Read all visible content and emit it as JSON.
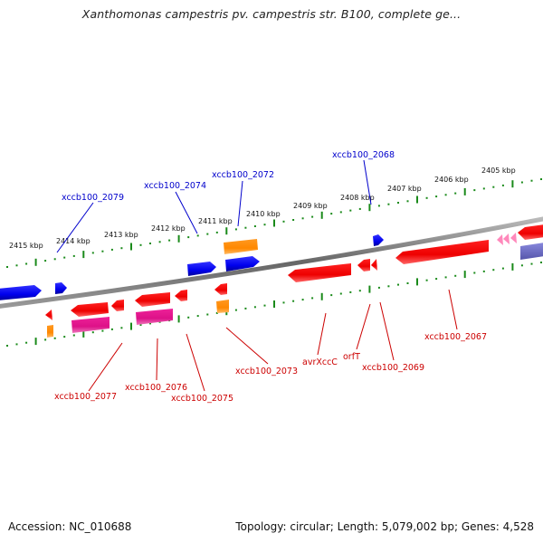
{
  "title": "Xanthomonas campestris pv. campestris str. B100, complete ge...",
  "footer": {
    "accession_label": "Accession: NC_010688",
    "summary": "Topology: circular; Length: 5,079,002 bp; Genes: 4,528"
  },
  "colors": {
    "backbone": "#7a7a7a",
    "ticks": "#1a8a1a",
    "forward_gene": "#0000ee",
    "reverse_gene": "#ee0000",
    "orange_gene": "#ff8800",
    "magenta_gene": "#dd1188",
    "pink_gene": "#ff88bb",
    "purple_gene": "#6666cc",
    "label_blue": "#0000cc",
    "label_red": "#cc0000"
  },
  "scale_labels": [
    "2415 kbp",
    "2414 kbp",
    "2413 kbp",
    "2412 kbp",
    "2411 kbp",
    "2410 kbp",
    "2409 kbp",
    "2408 kbp",
    "2407 kbp",
    "2406 kbp",
    "2405 kbp"
  ],
  "gene_labels_top": [
    "xccb100_2079",
    "xccb100_2074",
    "xccb100_2072",
    "xccb100_2068"
  ],
  "gene_labels_bottom": [
    "xccb100_2077",
    "xccb100_2076",
    "xccb100_2075",
    "xccb100_2073",
    "avrXccC",
    "orfT",
    "xccb100_2069",
    "xccb100_2067"
  ]
}
